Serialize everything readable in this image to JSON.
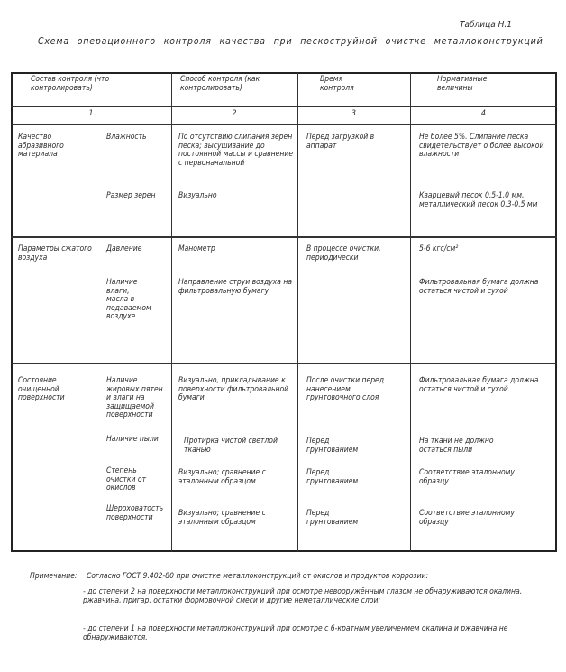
{
  "table_number": "Таблица Н.1",
  "title": "Схема операционного контроля качества при пескоструйной очистке металлоконструкций",
  "headers": [
    "Состав контроля (что контролировать)",
    "Способ контроля (как контролировать)",
    "Время контроля",
    "Нормативные величины"
  ],
  "column_numbers": [
    "1",
    "2",
    "3",
    "4"
  ],
  "rows": [
    {
      "group": "Качество абразивного материала",
      "items": [
        {
          "param": "Влажность",
          "method": "По отсутствию слипания зерен песка; высушивание до постоянной массы и сравнение с первоначальной",
          "time": "Перед загрузкой в аппарат",
          "norm": "Не более 5%. Слипание песка свидетельствует о более высокой влажности"
        },
        {
          "param": "Размер зерен",
          "method": "Визуально",
          "time": "",
          "norm": "Кварцевый песок 0,5-1,0 мм, металлический песок 0,3-0,5 мм"
        }
      ]
    },
    {
      "group": "Параметры сжатого воздуха",
      "items": [
        {
          "param": "Давление",
          "method": "Манометр",
          "time": "В процессе очистки, периодически",
          "norm": "5-6 кгс/см²"
        },
        {
          "param": "Наличие влаги, масла в подаваемом воздухе",
          "method": "Направление струи воздуха на фильтровальную бумагу",
          "time": "",
          "norm": "Фильтровальная бумага должна остаться чистой и сухой"
        }
      ]
    },
    {
      "group": "Состояние очищенной поверхности",
      "items": [
        {
          "param": "Наличие жировых пятен и влаги на защищаемой поверхности",
          "method": "Визуально, прикладывание к поверхности фильтровальной бумаги",
          "time": "После очистки перед нанесением грунтовочного слоя",
          "norm": "Фильтровальная бумага должна остаться чистой и сухой"
        },
        {
          "param": "Наличие пыли",
          "method": "Протирка чистой светлой тканью",
          "time": "Перед грунтованием",
          "norm": "На ткани не должно остаться пыли"
        },
        {
          "param": "Степень очистки от окислов",
          "method": "Визуально; сравнение с эталонным образцом",
          "time": "Перед грунтованием",
          "norm": "Соответствие эталонному образцу"
        },
        {
          "param": "Шероховатость поверхности",
          "method": "Визуально; сравнение с эталонным образцом",
          "time": "Перед грунтованием",
          "norm": "Соответствие эталонному образцу"
        }
      ]
    }
  ],
  "note": {
    "label": "Примечание:",
    "intro": "Согласно ГОСТ 9.402-80 при очистке металлоконструкций от окислов и продуктов коррозии:",
    "items": [
      "- до степени 2 на поверхности металлоконструкций при осмотре невооружённым глазом не обнаруживаются окалина, ржавчина, пригар, остатки формовочной смеси и другие неметаллические слои;",
      "- до степени 1 на поверхности металлоконструкций при осмотре с 6-кратным увеличением окалина и ржавчина не обнаруживаются."
    ]
  }
}
